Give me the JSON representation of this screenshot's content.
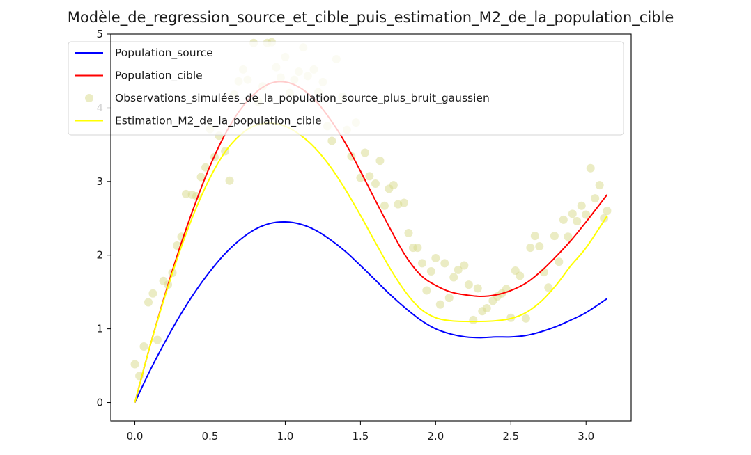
{
  "chart_data": {
    "type": "line",
    "title": "Modèle_de_regression_source_et_cible_puis_estimation_M2_de_la_population_cible",
    "xlabel": "",
    "ylabel": "",
    "xlim": [
      -0.16,
      3.3
    ],
    "ylim": [
      -0.25,
      5.0
    ],
    "x_ticks": [
      0.0,
      0.5,
      1.0,
      1.5,
      2.0,
      2.5,
      3.0
    ],
    "x_tick_labels": [
      "0.0",
      "0.5",
      "1.0",
      "1.5",
      "2.0",
      "2.5",
      "3.0"
    ],
    "y_ticks": [
      0,
      1,
      2,
      3,
      4,
      5
    ],
    "y_tick_labels": [
      "0",
      "1",
      "2",
      "3",
      "4",
      "5"
    ],
    "grid": false,
    "legend_position": "top-left",
    "series": [
      {
        "name": "Population_source",
        "kind": "line",
        "color": "#0000ff",
        "x": [
          0.0,
          0.1,
          0.2,
          0.3,
          0.4,
          0.5,
          0.6,
          0.7,
          0.8,
          0.9,
          1.0,
          1.1,
          1.2,
          1.3,
          1.4,
          1.5,
          1.6,
          1.7,
          1.8,
          1.9,
          2.0,
          2.1,
          2.2,
          2.3,
          2.4,
          2.5,
          2.6,
          2.7,
          2.8,
          2.9,
          3.0,
          3.14
        ],
        "y": [
          0.0,
          0.43,
          0.82,
          1.18,
          1.5,
          1.78,
          2.02,
          2.21,
          2.35,
          2.43,
          2.45,
          2.42,
          2.34,
          2.21,
          2.05,
          1.86,
          1.66,
          1.46,
          1.28,
          1.12,
          1.0,
          0.93,
          0.89,
          0.88,
          0.89,
          0.89,
          0.91,
          0.96,
          1.03,
          1.12,
          1.22,
          1.41
        ]
      },
      {
        "name": "Population_cible",
        "kind": "line",
        "color": "#ff0000",
        "x": [
          0.0,
          0.1,
          0.2,
          0.3,
          0.4,
          0.5,
          0.6,
          0.7,
          0.8,
          0.9,
          1.0,
          1.1,
          1.2,
          1.3,
          1.4,
          1.5,
          1.6,
          1.7,
          1.8,
          1.9,
          2.0,
          2.1,
          2.2,
          2.3,
          2.4,
          2.5,
          2.6,
          2.7,
          2.8,
          2.9,
          3.0,
          3.14
        ],
        "y": [
          0.0,
          0.76,
          1.46,
          2.11,
          2.69,
          3.21,
          3.64,
          3.97,
          4.2,
          4.33,
          4.35,
          4.27,
          4.1,
          3.84,
          3.52,
          3.14,
          2.74,
          2.35,
          1.99,
          1.73,
          1.59,
          1.5,
          1.46,
          1.44,
          1.46,
          1.52,
          1.62,
          1.78,
          1.98,
          2.2,
          2.45,
          2.82
        ]
      },
      {
        "name": "Observations_simulées_de_la_population_source_plus_bruit_gaussien",
        "kind": "scatter",
        "color": "#d7d98a",
        "x": [
          0.0,
          0.03,
          0.06,
          0.09,
          0.12,
          0.15,
          0.19,
          0.22,
          0.25,
          0.28,
          0.31,
          0.34,
          0.38,
          0.41,
          0.44,
          0.47,
          0.5,
          0.53,
          0.56,
          0.6,
          0.63,
          0.66,
          0.69,
          0.72,
          0.75,
          0.79,
          0.82,
          0.85,
          0.88,
          0.91,
          0.94,
          0.97,
          1.0,
          1.03,
          1.06,
          1.09,
          1.12,
          1.15,
          1.19,
          1.22,
          1.25,
          1.28,
          1.31,
          1.34,
          1.38,
          1.41,
          1.44,
          1.47,
          1.5,
          1.53,
          1.56,
          1.6,
          1.63,
          1.66,
          1.69,
          1.72,
          1.75,
          1.79,
          1.82,
          1.85,
          1.88,
          1.91,
          1.94,
          1.97,
          2.0,
          2.03,
          2.06,
          2.09,
          2.12,
          2.15,
          2.19,
          2.22,
          2.25,
          2.28,
          2.31,
          2.34,
          2.38,
          2.41,
          2.44,
          2.47,
          2.5,
          2.53,
          2.56,
          2.6,
          2.63,
          2.66,
          2.69,
          2.72,
          2.75,
          2.79,
          2.82,
          2.85,
          2.88,
          2.91,
          2.94,
          2.97,
          3.0,
          3.03,
          3.06,
          3.09,
          3.12,
          3.14
        ],
        "y": [
          0.52,
          0.36,
          0.76,
          1.36,
          1.48,
          0.85,
          1.65,
          1.6,
          1.76,
          2.13,
          2.25,
          2.83,
          2.82,
          2.8,
          3.06,
          3.19,
          3.71,
          3.33,
          3.62,
          3.41,
          3.01,
          4.18,
          4.36,
          4.52,
          4.38,
          4.88,
          4.08,
          4.29,
          4.88,
          4.89,
          4.55,
          4.41,
          4.69,
          4.2,
          4.38,
          4.49,
          4.82,
          4.43,
          4.52,
          4.21,
          4.35,
          3.75,
          3.55,
          4.66,
          4.15,
          3.7,
          3.34,
          3.8,
          3.05,
          3.39,
          3.07,
          2.97,
          3.28,
          2.67,
          2.9,
          2.95,
          2.69,
          2.71,
          2.3,
          2.1,
          2.1,
          1.89,
          1.52,
          1.78,
          1.96,
          1.33,
          1.89,
          1.42,
          1.7,
          1.8,
          1.86,
          1.6,
          1.12,
          1.55,
          1.24,
          1.28,
          1.38,
          1.44,
          1.48,
          1.54,
          1.15,
          1.79,
          1.72,
          1.14,
          2.1,
          2.26,
          2.12,
          1.77,
          1.56,
          2.26,
          1.91,
          2.48,
          2.25,
          2.56,
          2.46,
          2.67,
          2.55,
          3.18,
          2.77,
          2.95,
          2.5,
          2.6
        ]
      },
      {
        "name": "Estimation_M2_de_la_population_cible",
        "kind": "line",
        "color": "#ffff00",
        "x": [
          0.0,
          0.1,
          0.2,
          0.3,
          0.4,
          0.5,
          0.6,
          0.7,
          0.8,
          0.9,
          1.0,
          1.1,
          1.2,
          1.3,
          1.4,
          1.5,
          1.6,
          1.7,
          1.8,
          1.9,
          2.0,
          2.1,
          2.2,
          2.3,
          2.4,
          2.5,
          2.6,
          2.7,
          2.8,
          2.9,
          3.0,
          3.14
        ],
        "y": [
          0.0,
          0.76,
          1.44,
          2.06,
          2.6,
          3.05,
          3.4,
          3.63,
          3.76,
          3.79,
          3.75,
          3.63,
          3.45,
          3.2,
          2.89,
          2.54,
          2.17,
          1.81,
          1.5,
          1.27,
          1.15,
          1.11,
          1.1,
          1.1,
          1.11,
          1.14,
          1.22,
          1.37,
          1.59,
          1.86,
          2.1,
          2.53
        ]
      }
    ]
  }
}
